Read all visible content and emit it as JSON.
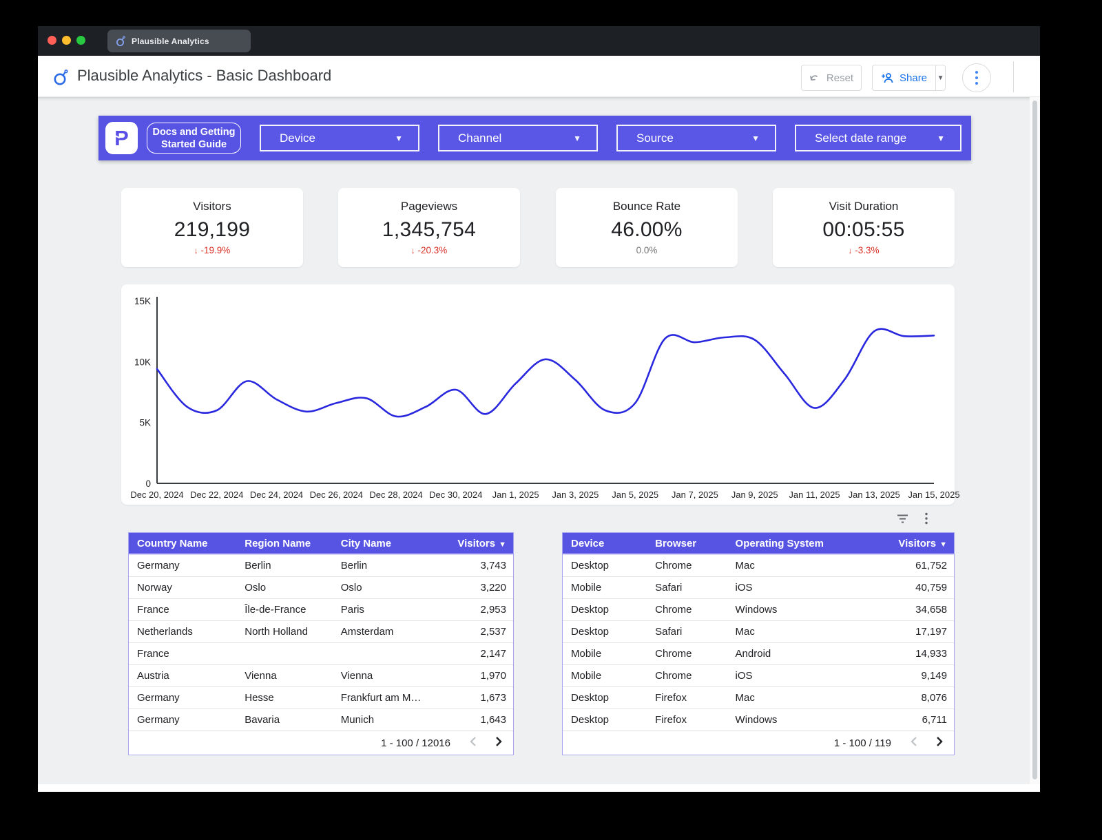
{
  "window": {
    "tab_title": "Plausible Analytics"
  },
  "header": {
    "title": "Plausible Analytics - Basic Dashboard",
    "reset_label": "Reset",
    "share_label": "Share"
  },
  "filter_bar": {
    "logo_letter": "P",
    "docs_button_line1": "Docs and Getting",
    "docs_button_line2": "Started Guide",
    "filters": [
      {
        "label": "Device"
      },
      {
        "label": "Channel"
      },
      {
        "label": "Source"
      },
      {
        "label": "Select date range"
      }
    ]
  },
  "kpis": [
    {
      "label": "Visitors",
      "value": "219,199",
      "arrow_glyph": "↓",
      "delta": "-19.9%",
      "delta_class": "kpi-delta down"
    },
    {
      "label": "Pageviews",
      "value": "1,345,754",
      "arrow_glyph": "↓",
      "delta": "-20.3%",
      "delta_class": "kpi-delta down"
    },
    {
      "label": "Bounce Rate",
      "value": "46.00%",
      "arrow_glyph": "",
      "delta": "0.0%",
      "delta_class": "kpi-delta flat"
    },
    {
      "label": "Visit Duration",
      "value": "00:05:55",
      "arrow_glyph": "↓",
      "delta": "-3.3%",
      "delta_class": "kpi-delta down"
    }
  ],
  "chart_data": {
    "type": "line",
    "series_name": "Visitors",
    "x": [
      "Dec 20, 2024",
      "Dec 21, 2024",
      "Dec 22, 2024",
      "Dec 23, 2024",
      "Dec 24, 2024",
      "Dec 25, 2024",
      "Dec 26, 2024",
      "Dec 27, 2024",
      "Dec 28, 2024",
      "Dec 29, 2024",
      "Dec 30, 2024",
      "Dec 31, 2024",
      "Jan 1, 2025",
      "Jan 2, 2025",
      "Jan 3, 2025",
      "Jan 4, 2025",
      "Jan 5, 2025",
      "Jan 6, 2025",
      "Jan 7, 2025",
      "Jan 8, 2025",
      "Jan 9, 2025",
      "Jan 10, 2025",
      "Jan 11, 2025",
      "Jan 12, 2025",
      "Jan 13, 2025",
      "Jan 14, 2025",
      "Jan 15, 2025"
    ],
    "values": [
      9400,
      6300,
      6000,
      8400,
      6900,
      5900,
      6600,
      7000,
      5500,
      6300,
      7700,
      5700,
      8200,
      10200,
      8500,
      6000,
      6600,
      11900,
      11600,
      12000,
      11800,
      9000,
      6200,
      8500,
      12500,
      12100,
      12150
    ],
    "ylim": [
      0,
      15000
    ],
    "yticks": [
      {
        "value": 0,
        "label": "0"
      },
      {
        "value": 5000,
        "label": "5K"
      },
      {
        "value": 10000,
        "label": "10K"
      },
      {
        "value": 15000,
        "label": "15K"
      }
    ],
    "xtick_every": 2,
    "grid": false,
    "legend": "none",
    "line_color": "#2a28de"
  },
  "geo_table": {
    "columns": [
      "Country Name",
      "Region Name",
      "City Name",
      "Visitors"
    ],
    "sort_column": "Visitors",
    "rows": [
      [
        "Germany",
        "Berlin",
        "Berlin",
        "3,743"
      ],
      [
        "Norway",
        "Oslo",
        "Oslo",
        "3,220"
      ],
      [
        "France",
        "Île-de-France",
        "Paris",
        "2,953"
      ],
      [
        "Netherlands",
        "North Holland",
        "Amsterdam",
        "2,537"
      ],
      [
        "France",
        "",
        "",
        "2,147"
      ],
      [
        "Austria",
        "Vienna",
        "Vienna",
        "1,970"
      ],
      [
        "Germany",
        "Hesse",
        "Frankfurt am M…",
        "1,673"
      ],
      [
        "Germany",
        "Bavaria",
        "Munich",
        "1,643"
      ]
    ],
    "pagination": "1 - 100 / 12016"
  },
  "tech_table": {
    "columns": [
      "Device",
      "Browser",
      "Operating System",
      "Visitors"
    ],
    "sort_column": "Visitors",
    "rows": [
      [
        "Desktop",
        "Chrome",
        "Mac",
        "61,752"
      ],
      [
        "Mobile",
        "Safari",
        "iOS",
        "40,759"
      ],
      [
        "Desktop",
        "Chrome",
        "Windows",
        "34,658"
      ],
      [
        "Desktop",
        "Safari",
        "Mac",
        "17,197"
      ],
      [
        "Mobile",
        "Chrome",
        "Android",
        "14,933"
      ],
      [
        "Mobile",
        "Chrome",
        "iOS",
        "9,149"
      ],
      [
        "Desktop",
        "Firefox",
        "Mac",
        "8,076"
      ],
      [
        "Desktop",
        "Firefox",
        "Windows",
        "6,711"
      ]
    ],
    "pagination": "1 - 100 / 119"
  },
  "colors": {
    "accent_purple": "#5753e3",
    "chart_line": "#2a28de",
    "delta_red": "#d93025",
    "share_blue": "#1a73e8"
  }
}
